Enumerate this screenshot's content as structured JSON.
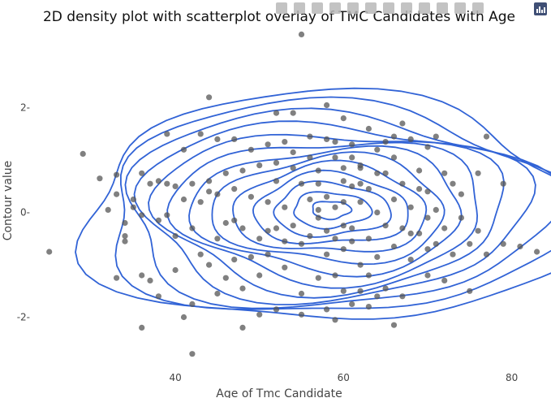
{
  "chart_data": {
    "type": "scatter",
    "title": "2D density plot with scatterplot overlay of TMC Candidates with Age",
    "xlabel": "Age of Tmc Candidate",
    "ylabel": "Contour value",
    "xlim": [
      23,
      84
    ],
    "ylim": [
      -3.0,
      3.5
    ],
    "xticks": [
      40,
      60,
      80
    ],
    "yticks": [
      -2,
      0,
      2
    ],
    "xtick_labels": [
      "40",
      "60",
      "80"
    ],
    "ytick_labels": [
      "-2",
      "0",
      "2"
    ],
    "grid": false,
    "density_center": [
      58.5,
      0.05
    ],
    "density_spread": [
      11.5,
      0.95
    ],
    "contour_levels": 13,
    "colors": {
      "contour": "#3163d6",
      "points": "#555555"
    },
    "series": [
      {
        "type": "scatter",
        "points": [
          [
            25,
            -0.75
          ],
          [
            29,
            1.12
          ],
          [
            31,
            0.65
          ],
          [
            32,
            0.05
          ],
          [
            33,
            0.72
          ],
          [
            33,
            0.35
          ],
          [
            33,
            -1.25
          ],
          [
            34,
            -0.55
          ],
          [
            34,
            -0.2
          ],
          [
            35,
            0.25
          ],
          [
            36,
            -0.05
          ],
          [
            36,
            -1.2
          ],
          [
            36,
            -2.2
          ],
          [
            37,
            -1.3
          ],
          [
            37,
            0.55
          ],
          [
            38,
            -0.15
          ],
          [
            38,
            -1.6
          ],
          [
            39,
            1.5
          ],
          [
            39,
            0.55
          ],
          [
            39,
            -0.05
          ],
          [
            40,
            0.5
          ],
          [
            40,
            -0.45
          ],
          [
            40,
            -1.1
          ],
          [
            41,
            -2.0
          ],
          [
            41,
            1.2
          ],
          [
            42,
            0.55
          ],
          [
            42,
            -0.3
          ],
          [
            42,
            -1.75
          ],
          [
            42,
            -2.7
          ],
          [
            43,
            1.5
          ],
          [
            43,
            0.2
          ],
          [
            43,
            -0.8
          ],
          [
            44,
            2.2
          ],
          [
            44,
            0.6
          ],
          [
            44,
            -1.0
          ],
          [
            45,
            1.4
          ],
          [
            45,
            0.35
          ],
          [
            45,
            -0.5
          ],
          [
            46,
            0.75
          ],
          [
            46,
            -0.2
          ],
          [
            46,
            -1.25
          ],
          [
            47,
            1.4
          ],
          [
            47,
            0.45
          ],
          [
            47,
            -0.9
          ],
          [
            48,
            0.8
          ],
          [
            48,
            -0.3
          ],
          [
            48,
            -1.45
          ],
          [
            48,
            -2.2
          ],
          [
            49,
            1.2
          ],
          [
            49,
            0.3
          ],
          [
            50,
            0.9
          ],
          [
            50,
            -0.5
          ],
          [
            50,
            -1.2
          ],
          [
            50,
            -1.95
          ],
          [
            51,
            1.3
          ],
          [
            51,
            0.2
          ],
          [
            51,
            -0.8
          ],
          [
            52,
            1.9
          ],
          [
            52,
            0.6
          ],
          [
            52,
            -0.3
          ],
          [
            52,
            -1.85
          ],
          [
            53,
            1.35
          ],
          [
            53,
            0.1
          ],
          [
            53,
            -1.05
          ],
          [
            54,
            1.9
          ],
          [
            54,
            0.85
          ],
          [
            54,
            -0.25
          ],
          [
            55,
            3.4
          ],
          [
            55,
            0.55
          ],
          [
            55,
            -0.6
          ],
          [
            55,
            -1.95
          ],
          [
            56,
            1.45
          ],
          [
            56,
            0.25
          ],
          [
            56,
            -0.45
          ],
          [
            57,
            0.8
          ],
          [
            57,
            -0.1
          ],
          [
            57,
            -1.25
          ],
          [
            58,
            2.05
          ],
          [
            58,
            1.4
          ],
          [
            58,
            0.3
          ],
          [
            58,
            -0.8
          ],
          [
            58,
            -1.85
          ],
          [
            59,
            1.05
          ],
          [
            59,
            0.1
          ],
          [
            59,
            -0.5
          ],
          [
            59,
            -2.05
          ],
          [
            60,
            1.8
          ],
          [
            60,
            0.85
          ],
          [
            60,
            0.2
          ],
          [
            60,
            -0.7
          ],
          [
            60,
            -1.5
          ],
          [
            61,
            1.3
          ],
          [
            61,
            0.5
          ],
          [
            61,
            -0.3
          ],
          [
            61,
            -1.75
          ],
          [
            62,
            0.9
          ],
          [
            62,
            0.2
          ],
          [
            62,
            -1.0
          ],
          [
            62,
            -1.5
          ],
          [
            63,
            1.6
          ],
          [
            63,
            0.45
          ],
          [
            63,
            -0.5
          ],
          [
            64,
            1.2
          ],
          [
            64,
            0.0
          ],
          [
            64,
            -0.85
          ],
          [
            64,
            -1.6
          ],
          [
            65,
            0.75
          ],
          [
            65,
            -0.25
          ],
          [
            65,
            -1.45
          ],
          [
            66,
            1.05
          ],
          [
            66,
            0.25
          ],
          [
            66,
            -0.65
          ],
          [
            67,
            1.7
          ],
          [
            67,
            0.55
          ],
          [
            67,
            -0.3
          ],
          [
            67,
            -1.6
          ],
          [
            68,
            1.4
          ],
          [
            68,
            0.1
          ],
          [
            68,
            -0.9
          ],
          [
            69,
            0.8
          ],
          [
            69,
            -0.4
          ],
          [
            70,
            1.25
          ],
          [
            70,
            0.4
          ],
          [
            70,
            -0.7
          ],
          [
            70,
            -1.2
          ],
          [
            71,
            1.45
          ],
          [
            71,
            0.05
          ],
          [
            72,
            0.75
          ],
          [
            72,
            -0.3
          ],
          [
            72,
            -1.3
          ],
          [
            73,
            0.55
          ],
          [
            73,
            -0.8
          ],
          [
            74,
            0.35
          ],
          [
            74,
            -0.1
          ],
          [
            75,
            -0.6
          ],
          [
            75,
            -1.5
          ],
          [
            76,
            0.75
          ],
          [
            76,
            -0.35
          ],
          [
            77,
            1.45
          ],
          [
            77,
            -0.8
          ],
          [
            79,
            0.55
          ],
          [
            79,
            -0.6
          ],
          [
            81,
            -0.65
          ],
          [
            83,
            -0.75
          ],
          [
            57,
            0.05
          ],
          [
            56,
            1.05
          ],
          [
            61,
            1.05
          ],
          [
            63,
            -1.2
          ],
          [
            65,
            1.35
          ],
          [
            53,
            -0.55
          ],
          [
            62,
            0.85
          ],
          [
            66,
            1.45
          ],
          [
            69,
            0.45
          ],
          [
            71,
            -0.6
          ],
          [
            47,
            -0.15
          ],
          [
            49,
            -0.85
          ],
          [
            51,
            -0.35
          ],
          [
            52,
            0.95
          ],
          [
            54,
            1.15
          ],
          [
            59,
            -1.2
          ],
          [
            60,
            -0.25
          ],
          [
            68,
            -0.4
          ],
          [
            70,
            -0.1
          ],
          [
            44,
            0.4
          ],
          [
            41,
            0.25
          ],
          [
            38,
            0.6
          ],
          [
            36,
            0.75
          ],
          [
            35,
            0.1
          ],
          [
            34,
            -0.45
          ],
          [
            45,
            -1.55
          ],
          [
            63,
            -1.8
          ],
          [
            66,
            -2.15
          ],
          [
            55,
            -1.55
          ],
          [
            58,
            -0.35
          ],
          [
            61,
            -0.55
          ],
          [
            62,
            0.55
          ],
          [
            60,
            0.6
          ],
          [
            59,
            1.35
          ],
          [
            57,
            0.55
          ],
          [
            64,
            0.75
          ]
        ]
      }
    ]
  },
  "modebar": {
    "buttons": [
      "camera-icon",
      "zoom-icon",
      "pan-icon",
      "box-select-icon",
      "lasso-select-icon",
      "zoom-in-icon",
      "zoom-out-icon",
      "autoscale-icon",
      "reset-axes-icon",
      "spike-lines-icon",
      "hover-closest-icon",
      "hover-compare-icon"
    ],
    "logo": "plotly-logo-icon"
  }
}
